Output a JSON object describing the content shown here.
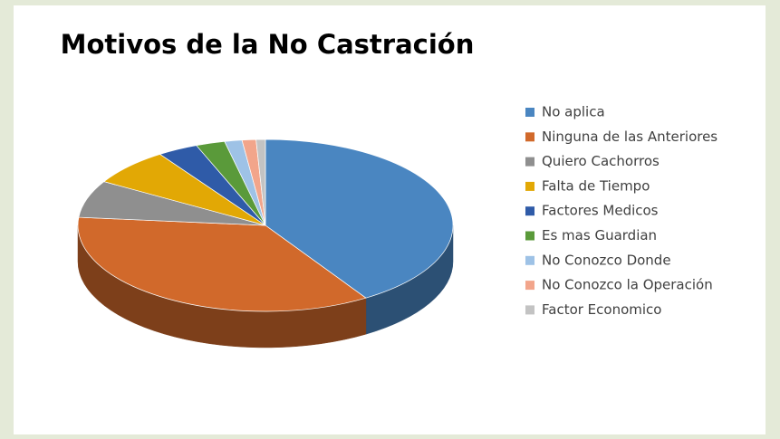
{
  "chart_data": {
    "type": "pie3d",
    "title": "Motivos de la No Castración",
    "categories": [
      "No aplica",
      "Ninguna de las Anteriores",
      "Quiero Cachorros",
      "Falta de Tiempo",
      "Factores Medicos",
      "Es mas Guardian",
      "No Conozco Donde",
      "No Conozco la Operación",
      "Factor Economico"
    ],
    "values": [
      41,
      35.5,
      7,
      7,
      3.5,
      2.5,
      1.5,
      1.2,
      0.8
    ],
    "colors": [
      "#4a86c1",
      "#d1692b",
      "#8f8f8f",
      "#e2a805",
      "#2f5ba8",
      "#5a9a3a",
      "#9ec2e6",
      "#f2a58b",
      "#c3c3c3"
    ],
    "legend": "right"
  }
}
